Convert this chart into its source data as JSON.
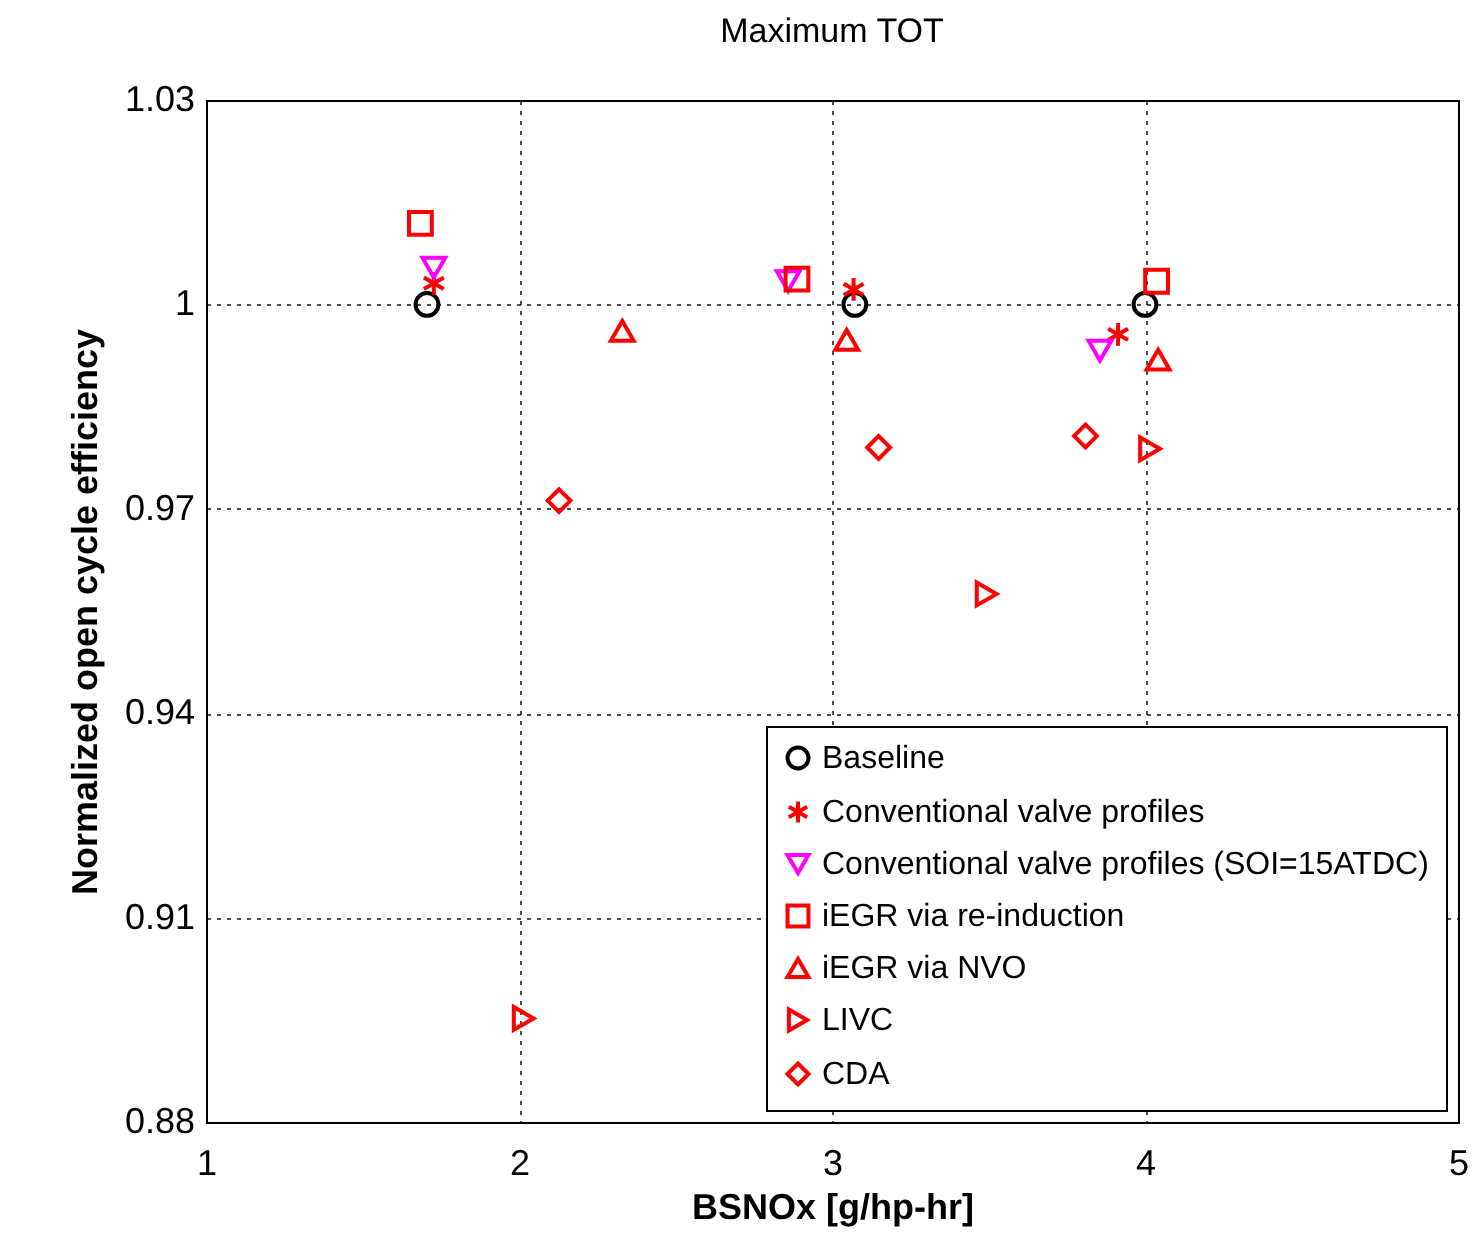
{
  "chart_data": {
    "type": "scatter",
    "title": "Maximum TOT",
    "xlabel": "BSNOx [g/hp-hr]",
    "ylabel": "Normalized open cycle efficiency",
    "xlim": [
      1,
      5
    ],
    "xticks": [
      1,
      2,
      3,
      4,
      5
    ],
    "ylim": [
      0.88,
      1.03
    ],
    "yticks": [
      0.88,
      0.91,
      0.94,
      0.97,
      1,
      1.03
    ],
    "grid": true,
    "legend": "bottom right",
    "series": [
      {
        "name": "Baseline",
        "color": "#000000",
        "marker": "circle",
        "x": [
          1.706,
          3.073,
          4.0
        ],
        "values": [
          1.0,
          1.0,
          1.0
        ]
      },
      {
        "name": "Conventional valve profiles",
        "color": "#ff0000",
        "marker": "cross",
        "x": [
          1.728,
          3.069,
          3.914
        ],
        "values": [
          1.0031,
          1.0022,
          0.9956
        ]
      },
      {
        "name": "Conventional valve profiles (SOI=15ATDC)",
        "color": "#ff00ff",
        "marker": "triangle-down",
        "x": [
          1.728,
          2.86,
          3.856
        ],
        "values": [
          1.0054,
          1.0034,
          0.9932
        ]
      },
      {
        "name": "iEGR via re-induction",
        "color": "#ff0000",
        "marker": "square",
        "x": [
          1.685,
          2.888,
          4.037
        ],
        "values": [
          1.0119,
          1.0037,
          1.0034
        ]
      },
      {
        "name": "iEGR via NVO",
        "color": "#ff0000",
        "marker": "triangle",
        "x": [
          2.33,
          3.047,
          4.042
        ],
        "values": [
          0.9961,
          0.9948,
          0.9919
        ]
      },
      {
        "name": "LIVC",
        "color": "#ff0000",
        "marker": "triangle-right",
        "x": [
          2.015,
          3.494,
          4.016
        ],
        "values": [
          0.8952,
          0.9575,
          0.9788
        ]
      },
      {
        "name": "CDA",
        "color": "#ff0000",
        "marker": "diamond",
        "x": [
          2.128,
          3.149,
          3.81
        ],
        "values": [
          0.9712,
          0.979,
          0.9807
        ]
      }
    ]
  }
}
